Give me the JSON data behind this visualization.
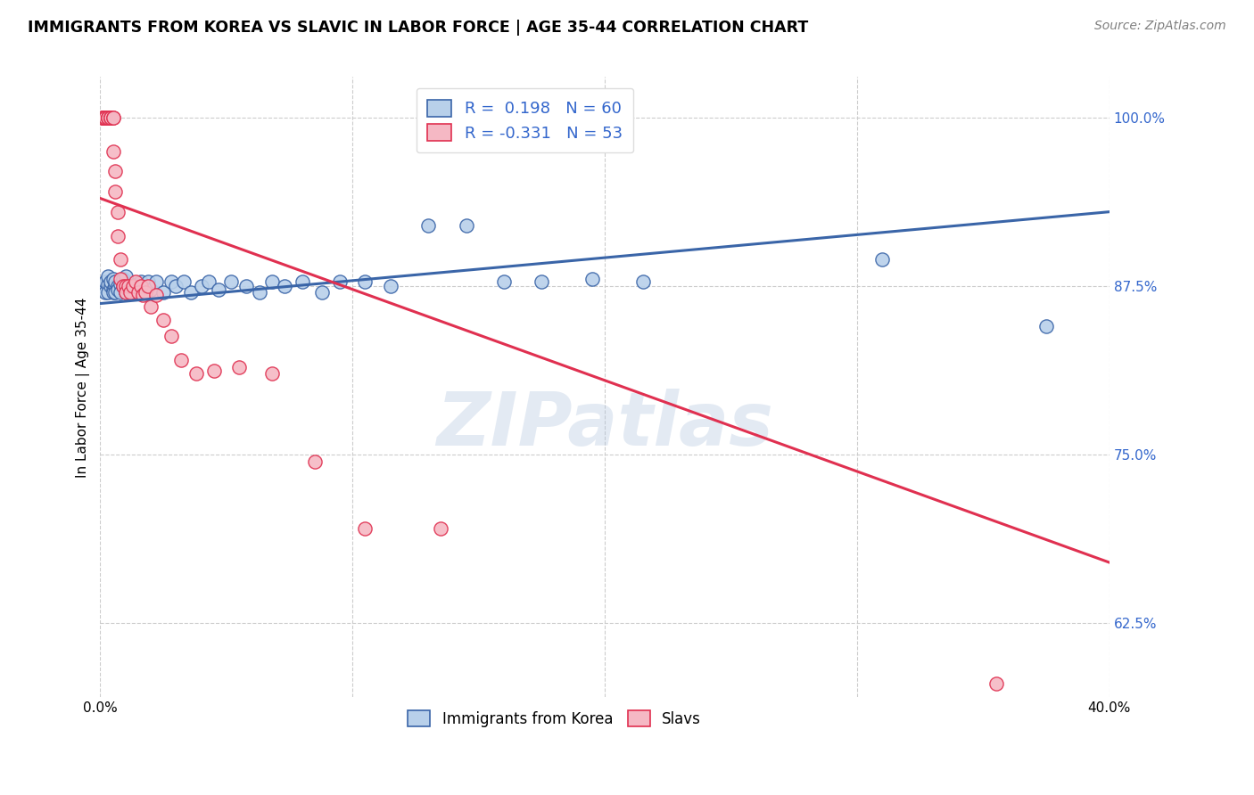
{
  "title": "IMMIGRANTS FROM KOREA VS SLAVIC IN LABOR FORCE | AGE 35-44 CORRELATION CHART",
  "source": "Source: ZipAtlas.com",
  "ylabel": "In Labor Force | Age 35-44",
  "xlim": [
    0.0,
    0.4
  ],
  "ylim": [
    0.57,
    1.03
  ],
  "xtick_positions": [
    0.0,
    0.1,
    0.2,
    0.3,
    0.4
  ],
  "xticklabels": [
    "0.0%",
    "",
    "",
    "",
    "40.0%"
  ],
  "yticks_right": [
    0.625,
    0.75,
    0.875,
    1.0
  ],
  "ytick_labels_right": [
    "62.5%",
    "75.0%",
    "87.5%",
    "100.0%"
  ],
  "korea_R": 0.198,
  "korea_N": 60,
  "slavic_R": -0.331,
  "slavic_N": 53,
  "korea_color": "#b8d0ea",
  "korea_edge_color": "#3a65a8",
  "slavic_color": "#f5b8c4",
  "slavic_edge_color": "#e03050",
  "korea_line_color": "#3a65a8",
  "slavic_line_color": "#e03050",
  "watermark": "ZIPatlas",
  "legend_R_color": "#3366cc",
  "right_axis_color": "#3366cc",
  "korea_x": [
    0.001,
    0.002,
    0.002,
    0.003,
    0.003,
    0.003,
    0.004,
    0.004,
    0.005,
    0.005,
    0.005,
    0.006,
    0.006,
    0.006,
    0.007,
    0.007,
    0.008,
    0.008,
    0.009,
    0.009,
    0.01,
    0.01,
    0.01,
    0.011,
    0.012,
    0.013,
    0.014,
    0.015,
    0.016,
    0.017,
    0.018,
    0.019,
    0.02,
    0.022,
    0.025,
    0.028,
    0.03,
    0.033,
    0.036,
    0.04,
    0.043,
    0.047,
    0.052,
    0.058,
    0.063,
    0.068,
    0.073,
    0.08,
    0.088,
    0.095,
    0.105,
    0.115,
    0.13,
    0.145,
    0.16,
    0.175,
    0.195,
    0.215,
    0.31,
    0.375
  ],
  "korea_y": [
    0.875,
    0.878,
    0.87,
    0.876,
    0.87,
    0.882,
    0.875,
    0.878,
    0.872,
    0.87,
    0.88,
    0.875,
    0.87,
    0.878,
    0.875,
    0.872,
    0.876,
    0.87,
    0.88,
    0.875,
    0.876,
    0.87,
    0.882,
    0.872,
    0.875,
    0.87,
    0.876,
    0.872,
    0.878,
    0.875,
    0.87,
    0.878,
    0.872,
    0.878,
    0.87,
    0.878,
    0.875,
    0.878,
    0.87,
    0.875,
    0.878,
    0.872,
    0.878,
    0.875,
    0.87,
    0.878,
    0.875,
    0.878,
    0.87,
    0.878,
    0.878,
    0.875,
    0.92,
    0.92,
    0.878,
    0.878,
    0.88,
    0.878,
    0.895,
    0.845
  ],
  "slavic_x": [
    0.001,
    0.001,
    0.001,
    0.001,
    0.002,
    0.002,
    0.002,
    0.002,
    0.002,
    0.003,
    0.003,
    0.003,
    0.003,
    0.003,
    0.003,
    0.004,
    0.004,
    0.004,
    0.004,
    0.005,
    0.005,
    0.005,
    0.006,
    0.006,
    0.007,
    0.007,
    0.008,
    0.008,
    0.009,
    0.01,
    0.01,
    0.011,
    0.012,
    0.013,
    0.014,
    0.015,
    0.016,
    0.017,
    0.018,
    0.019,
    0.02,
    0.022,
    0.025,
    0.028,
    0.032,
    0.038,
    0.045,
    0.055,
    0.068,
    0.085,
    0.105,
    0.135,
    0.355
  ],
  "slavic_y": [
    1.0,
    1.0,
    1.0,
    1.0,
    1.0,
    1.0,
    1.0,
    1.0,
    1.0,
    1.0,
    1.0,
    1.0,
    1.0,
    1.0,
    1.0,
    1.0,
    1.0,
    1.0,
    1.0,
    1.0,
    1.0,
    0.975,
    0.96,
    0.945,
    0.93,
    0.912,
    0.895,
    0.88,
    0.875,
    0.875,
    0.87,
    0.875,
    0.87,
    0.875,
    0.878,
    0.87,
    0.875,
    0.868,
    0.87,
    0.875,
    0.86,
    0.868,
    0.85,
    0.838,
    0.82,
    0.81,
    0.812,
    0.815,
    0.81,
    0.745,
    0.695,
    0.695,
    0.58
  ]
}
